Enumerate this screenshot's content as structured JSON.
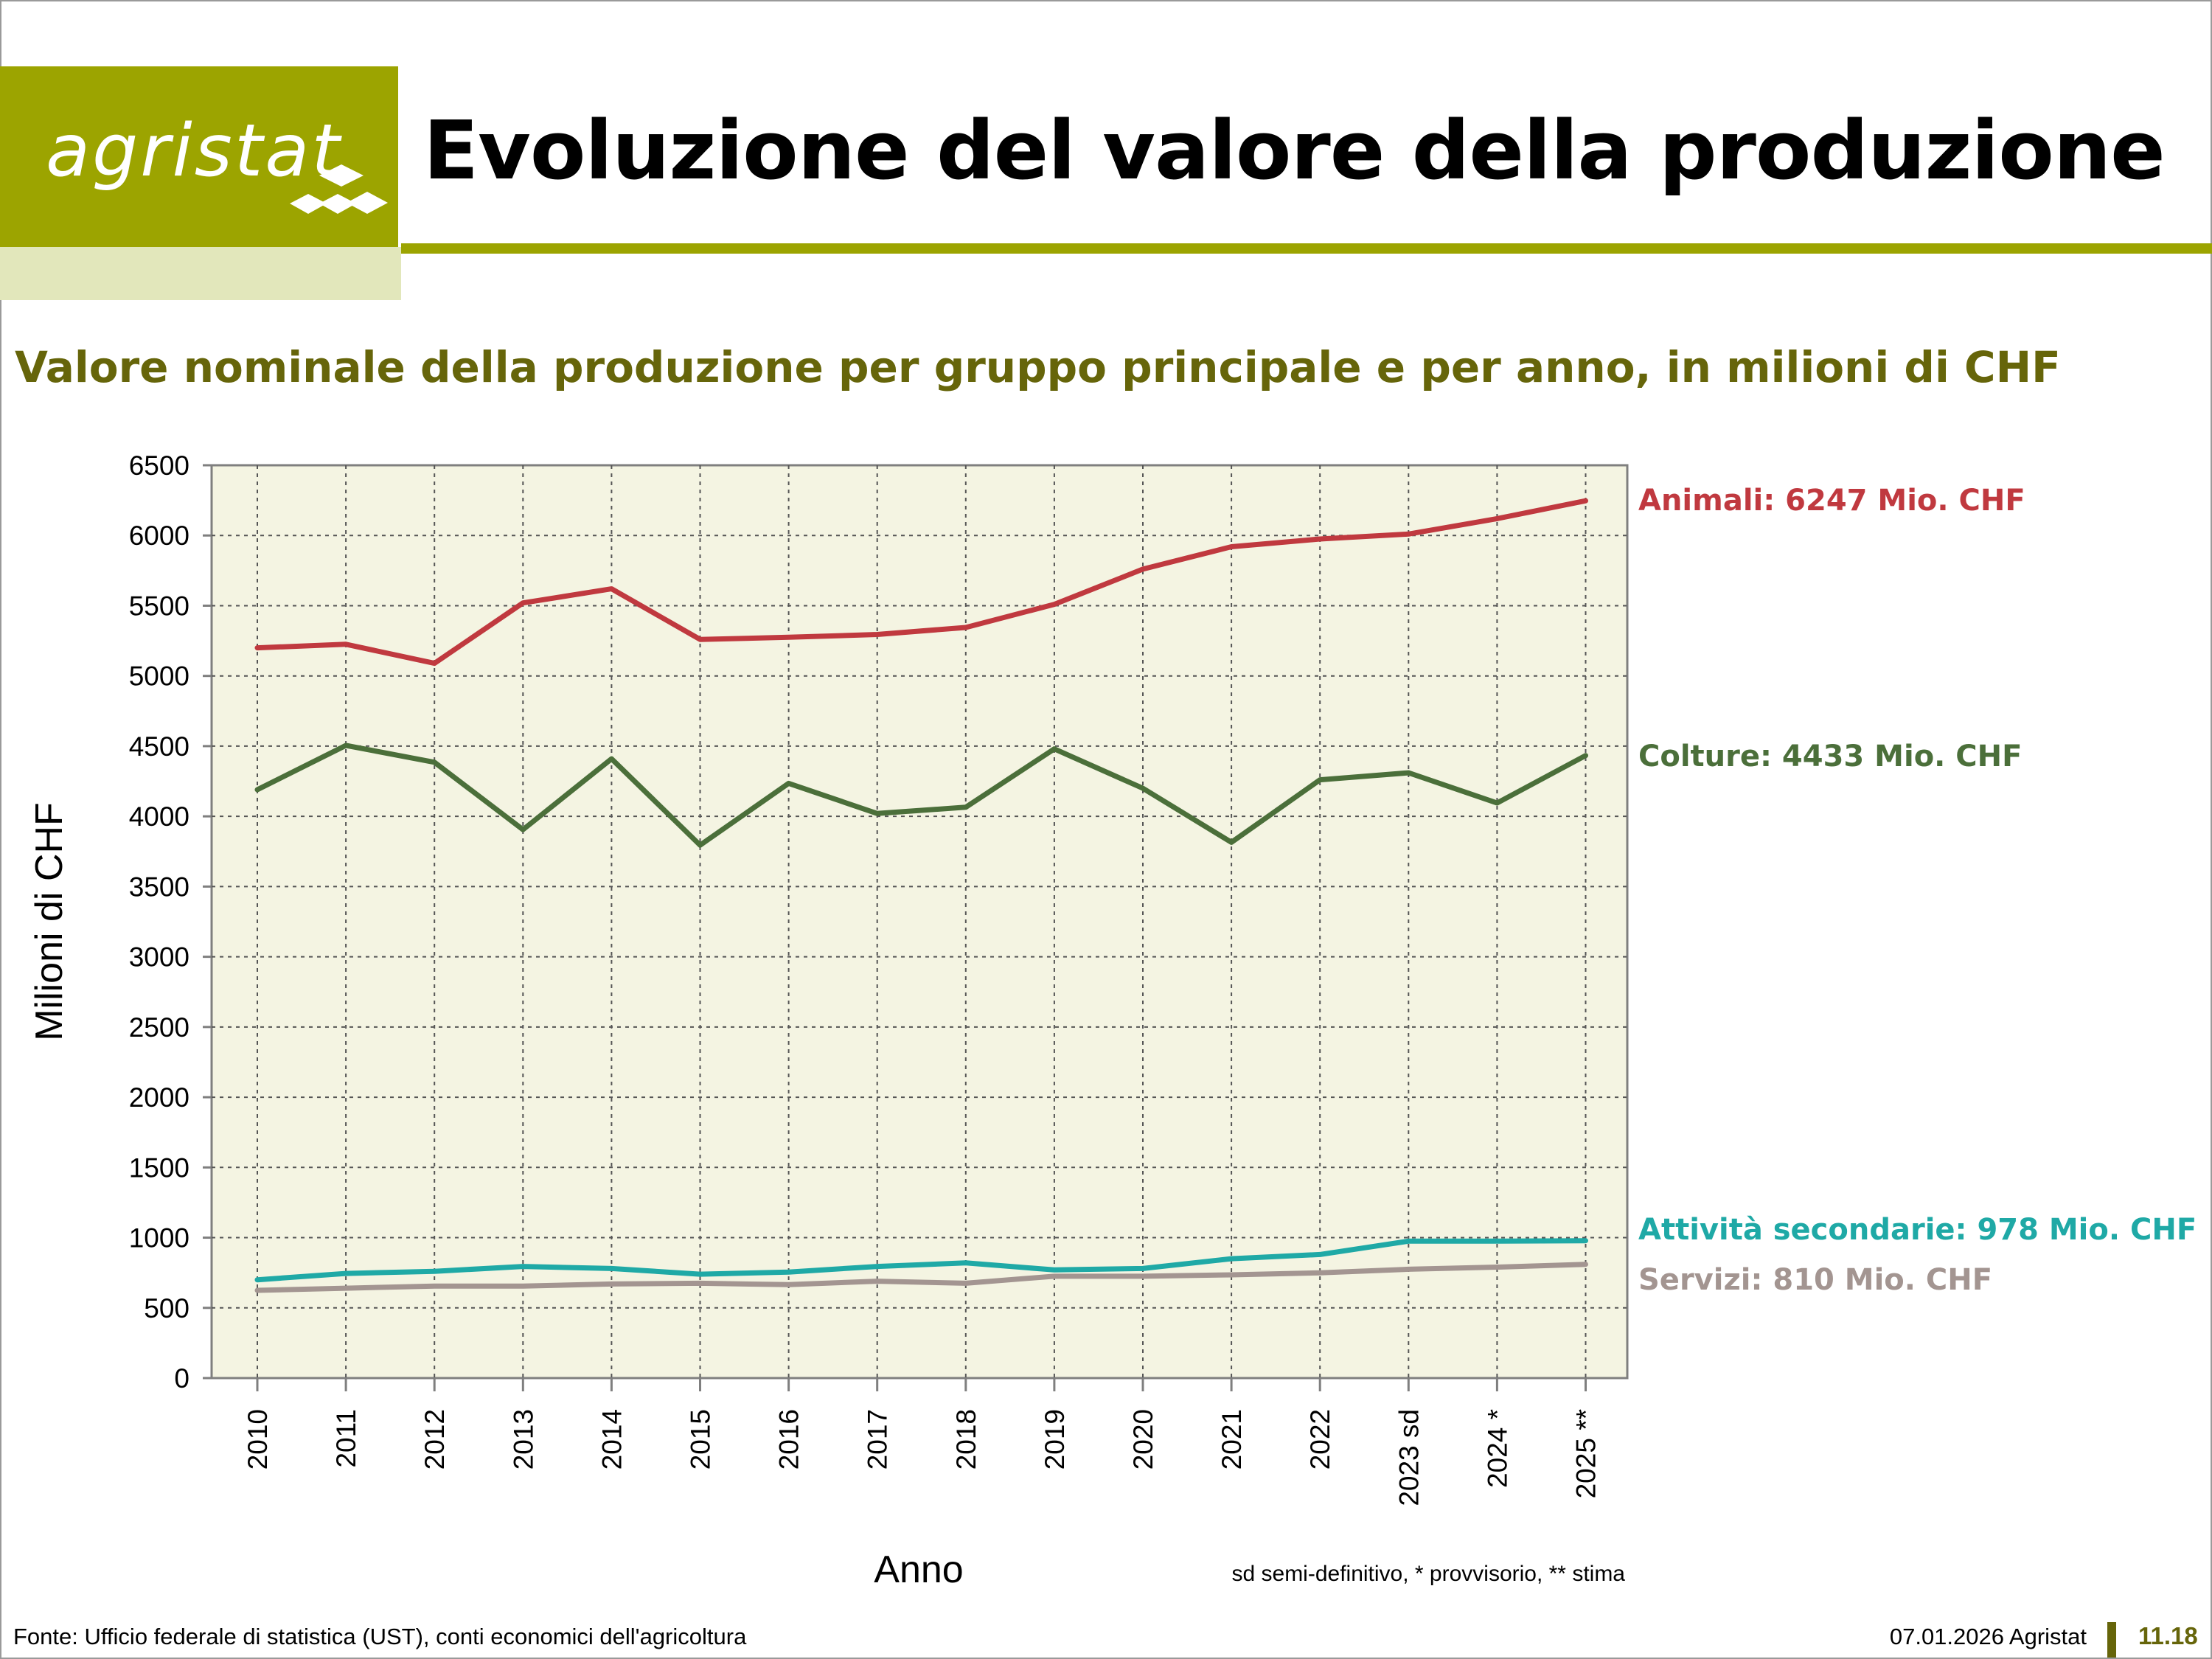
{
  "header": {
    "logo_text": "agristat",
    "title": "Evoluzione del valore della produzione"
  },
  "subtitle": "Valore nominale della produzione per gruppo principale e per anno, in milioni di CHF",
  "chart_data": {
    "type": "line",
    "xlabel": "Anno",
    "ylabel": "Milioni di CHF",
    "ylim": [
      0,
      6500
    ],
    "yticks": [
      0,
      500,
      1000,
      1500,
      2000,
      2500,
      3000,
      3500,
      4000,
      4500,
      5000,
      5500,
      6000,
      6500
    ],
    "categories": [
      "2010",
      "2011",
      "2012",
      "2013",
      "2014",
      "2015",
      "2016",
      "2017",
      "2018",
      "2019",
      "2020",
      "2021",
      "2022",
      "2023 sd",
      "2024 *",
      "2025 **"
    ],
    "grid": true,
    "legend": "right, end-of-line labels",
    "note": "sd semi-definitivo, * provvisorio, ** stima",
    "series": [
      {
        "name": "Animali",
        "label": "Animali: 6247 Mio. CHF",
        "color": "#c0393f",
        "values": [
          5200,
          5225,
          5090,
          5520,
          5620,
          5260,
          5275,
          5295,
          5345,
          5510,
          5760,
          5920,
          5975,
          6010,
          6120,
          6247
        ]
      },
      {
        "name": "Colture",
        "label": "Colture: 4433 Mio. CHF",
        "color": "#4b6f3a",
        "values": [
          4190,
          4505,
          4385,
          3905,
          4410,
          3795,
          4235,
          4020,
          4065,
          4480,
          4200,
          3815,
          4260,
          4310,
          4095,
          4433
        ]
      },
      {
        "name": "Attività secondarie",
        "label": "Attività secondarie: 978 Mio. CHF",
        "color": "#1fa9a6",
        "values": [
          700,
          745,
          760,
          795,
          780,
          740,
          755,
          795,
          820,
          770,
          780,
          850,
          880,
          975,
          975,
          978
        ]
      },
      {
        "name": "Servizi",
        "label": "Servizi: 810 Mio. CHF",
        "color": "#a39591",
        "values": [
          625,
          640,
          655,
          655,
          670,
          675,
          665,
          690,
          675,
          725,
          725,
          735,
          750,
          775,
          790,
          810
        ]
      }
    ]
  },
  "footer": {
    "source": "Fonte: Ufficio federale di statistica (UST), conti economici dell'agricoltura",
    "date": "07.01.2026 Agristat",
    "page": "11.18"
  }
}
